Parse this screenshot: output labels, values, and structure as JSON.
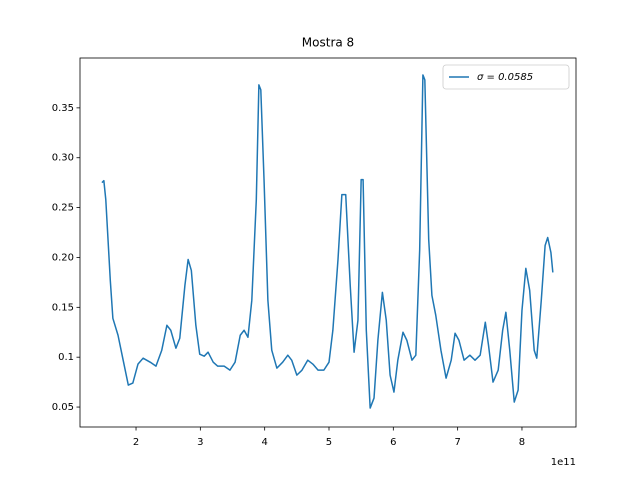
{
  "chart_data": {
    "type": "line",
    "title": "Mostra 8",
    "x": [
      1.47,
      1.5,
      1.53,
      1.6,
      1.64,
      1.72,
      1.8,
      1.88,
      1.95,
      2.03,
      2.11,
      2.22,
      2.31,
      2.4,
      2.48,
      2.54,
      2.62,
      2.68,
      2.76,
      2.81,
      2.86,
      2.93,
      2.99,
      3.06,
      3.12,
      3.2,
      3.27,
      3.37,
      3.46,
      3.54,
      3.62,
      3.68,
      3.74,
      3.8,
      3.87,
      3.91,
      3.94,
      3.99,
      4.05,
      4.11,
      4.19,
      4.28,
      4.36,
      4.42,
      4.5,
      4.58,
      4.67,
      4.75,
      4.83,
      4.92,
      5.0,
      5.06,
      5.14,
      5.2,
      5.26,
      5.33,
      5.39,
      5.45,
      5.5,
      5.53,
      5.58,
      5.64,
      5.7,
      5.76,
      5.83,
      5.89,
      5.95,
      6.01,
      6.07,
      6.15,
      6.21,
      6.29,
      6.35,
      6.41,
      6.46,
      6.49,
      6.55,
      6.6,
      6.66,
      6.74,
      6.82,
      6.9,
      6.96,
      7.02,
      7.1,
      7.19,
      7.27,
      7.35,
      7.43,
      7.48,
      7.55,
      7.63,
      7.7,
      7.75,
      7.81,
      7.88,
      7.94,
      8.0,
      8.06,
      8.12,
      8.19,
      8.23,
      8.3,
      8.36,
      8.4,
      8.45,
      8.48
    ],
    "series": [
      {
        "name": "σ = 0.0585",
        "color": "#1f77b4",
        "values": [
          0.275,
          0.277,
          0.258,
          0.177,
          0.139,
          0.122,
          0.097,
          0.072,
          0.074,
          0.093,
          0.099,
          0.095,
          0.091,
          0.107,
          0.132,
          0.127,
          0.109,
          0.119,
          0.172,
          0.198,
          0.187,
          0.132,
          0.103,
          0.101,
          0.105,
          0.095,
          0.091,
          0.091,
          0.087,
          0.095,
          0.122,
          0.127,
          0.12,
          0.157,
          0.258,
          0.373,
          0.368,
          0.278,
          0.157,
          0.107,
          0.089,
          0.095,
          0.102,
          0.097,
          0.082,
          0.087,
          0.097,
          0.093,
          0.087,
          0.087,
          0.095,
          0.127,
          0.198,
          0.263,
          0.263,
          0.172,
          0.105,
          0.137,
          0.278,
          0.278,
          0.127,
          0.049,
          0.059,
          0.117,
          0.165,
          0.137,
          0.082,
          0.065,
          0.097,
          0.125,
          0.117,
          0.097,
          0.102,
          0.208,
          0.383,
          0.378,
          0.218,
          0.162,
          0.142,
          0.107,
          0.079,
          0.097,
          0.124,
          0.117,
          0.097,
          0.102,
          0.097,
          0.102,
          0.135,
          0.112,
          0.075,
          0.087,
          0.127,
          0.145,
          0.107,
          0.055,
          0.067,
          0.147,
          0.189,
          0.167,
          0.107,
          0.099,
          0.157,
          0.212,
          0.22,
          0.205,
          0.185
        ]
      }
    ],
    "xlim": [
      1.129,
      8.84
    ],
    "ylim": [
      0.03,
      0.4
    ],
    "xticks": [
      2,
      3,
      4,
      5,
      6,
      7,
      8
    ],
    "yticks": [
      0.05,
      0.1,
      {
        "value": 0.15,
        "label": "0.15"
      },
      {
        "value": 0.2,
        "label": "0.20"
      },
      0.25,
      {
        "value": 0.3,
        "label": "0.30"
      },
      0.35
    ],
    "x_offset_text": "1e11",
    "legend": "upper right"
  }
}
